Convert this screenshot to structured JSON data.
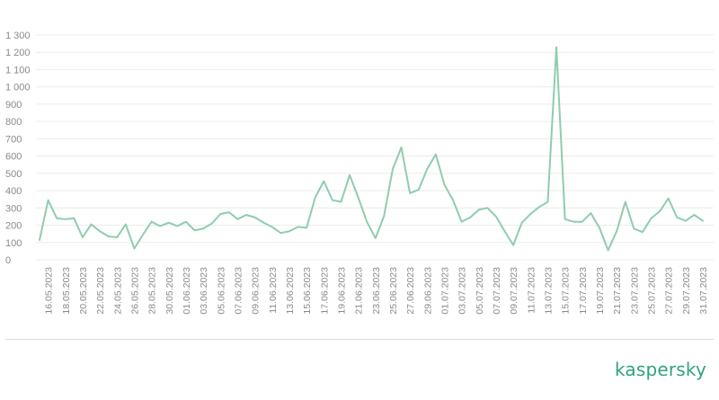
{
  "brand": {
    "logo_text": "kaspersky",
    "logo_color": "#2fa37b"
  },
  "colors": {
    "line": "#8ecdae",
    "grid": "#ececec",
    "divider": "#dcdcdc",
    "tick": "#8a8a8a"
  },
  "chart_data": {
    "type": "line",
    "title": "",
    "xlabel": "",
    "ylabel": "",
    "ylim": [
      0,
      1300
    ],
    "yticks": [
      0,
      100,
      200,
      300,
      400,
      500,
      600,
      700,
      800,
      900,
      1000,
      1100,
      1200,
      1300
    ],
    "ytick_labels": [
      "0",
      "100",
      "200",
      "300",
      "400",
      "500",
      "600",
      "700",
      "800",
      "900",
      "1 000",
      "1 100",
      "1 200",
      "1 300"
    ],
    "grid": true,
    "legend": "none",
    "x_labels": [
      "16.05.2023",
      "18.05.2023",
      "20.05.2023",
      "22.05.2023",
      "24.05.2023",
      "26.05.2023",
      "28.05.2023",
      "30.05.2023",
      "01.06.2023",
      "03.06.2023",
      "05.06.2023",
      "07.06.2023",
      "09.06.2023",
      "11.06.2023",
      "13.06.2023",
      "15.06.2023",
      "17.06.2023",
      "19.06.2023",
      "21.06.2023",
      "23.06.2023",
      "25.06.2023",
      "27.06.2023",
      "29.06.2023",
      "01.07.2023",
      "03.07.2023",
      "05.07.2023",
      "07.07.2023",
      "09.07.2023",
      "11.07.2023",
      "13.07.2023",
      "15.07.2023",
      "17.07.2023",
      "19.07.2023",
      "21.07.2023",
      "23.07.2023",
      "25.07.2023",
      "27.07.2023",
      "29.07.2023",
      "31.07.2023"
    ],
    "x_start": "15.05.2023",
    "values": [
      115,
      345,
      240,
      235,
      240,
      130,
      205,
      165,
      135,
      130,
      205,
      65,
      145,
      220,
      195,
      215,
      195,
      220,
      170,
      180,
      210,
      265,
      275,
      235,
      260,
      245,
      215,
      190,
      155,
      165,
      190,
      185,
      360,
      455,
      345,
      335,
      490,
      360,
      220,
      125,
      255,
      525,
      650,
      385,
      405,
      525,
      610,
      435,
      345,
      220,
      245,
      290,
      300,
      250,
      165,
      85,
      215,
      265,
      305,
      335,
      1230,
      235,
      220,
      220,
      270,
      185,
      55,
      165,
      335,
      180,
      160,
      240,
      280,
      355,
      245,
      225,
      260,
      225
    ]
  }
}
